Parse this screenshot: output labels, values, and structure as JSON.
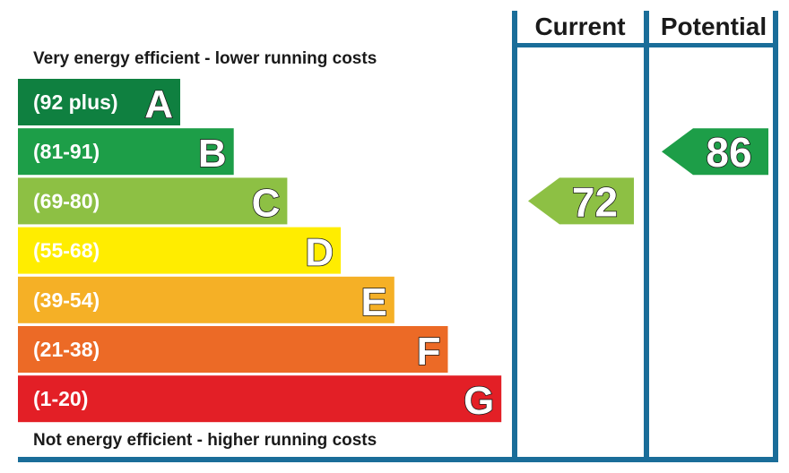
{
  "headers": {
    "current": "Current",
    "potential": "Potential"
  },
  "notes": {
    "top": "Very energy efficient - lower running costs",
    "bottom": "Not energy efficient - higher running costs"
  },
  "colors": {
    "frame": "#1a6d99",
    "text": "#1a1a1a"
  },
  "chart_data": {
    "type": "bar",
    "bands": [
      {
        "letter": "A",
        "range": "(92 plus)",
        "min": 92,
        "max": null,
        "color": "#0f8040"
      },
      {
        "letter": "B",
        "range": "(81-91)",
        "min": 81,
        "max": 91,
        "color": "#1d9e48"
      },
      {
        "letter": "C",
        "range": "(69-80)",
        "min": 69,
        "max": 80,
        "color": "#8dc044"
      },
      {
        "letter": "D",
        "range": "(55-68)",
        "min": 55,
        "max": 68,
        "color": "#ffed00"
      },
      {
        "letter": "E",
        "range": "(39-54)",
        "min": 39,
        "max": 54,
        "color": "#f5b026"
      },
      {
        "letter": "F",
        "range": "(21-38)",
        "min": 21,
        "max": 38,
        "color": "#ec6a26"
      },
      {
        "letter": "G",
        "range": "(1-20)",
        "min": 1,
        "max": 20,
        "color": "#e31f26"
      }
    ],
    "ratings": [
      {
        "column": "Current",
        "value": 72,
        "band": "C"
      },
      {
        "column": "Potential",
        "value": 86,
        "band": "B"
      }
    ]
  }
}
